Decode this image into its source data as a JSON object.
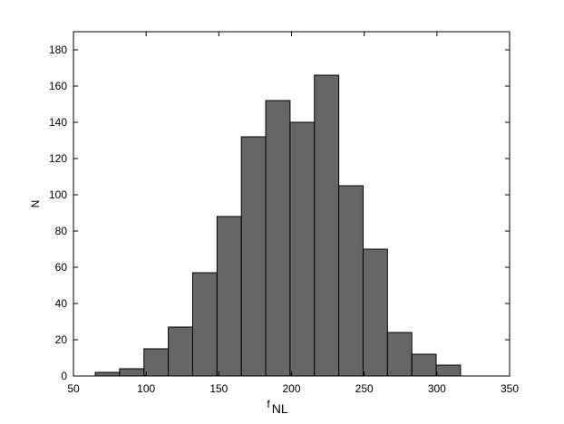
{
  "chart_data": {
    "type": "histogram",
    "bins": [
      65,
      81.75,
      98.5,
      115.25,
      132,
      148.75,
      165.5,
      182.25,
      199,
      215.75,
      232.5,
      249.25,
      266,
      282.75,
      299.5,
      316.25
    ],
    "values": [
      2,
      4,
      15,
      27,
      57,
      88,
      132,
      152,
      140,
      166,
      105,
      70,
      24,
      12,
      6
    ],
    "color": "#666666",
    "xlim": [
      50,
      350
    ],
    "xticks": [
      50,
      100,
      150,
      200,
      250,
      300,
      350
    ],
    "ylim": [
      0,
      190
    ],
    "yticks": [
      0,
      20,
      40,
      60,
      80,
      100,
      120,
      140,
      160,
      180
    ],
    "x_label": {
      "main": "f",
      "sub": "NL"
    },
    "y_label": "N"
  }
}
